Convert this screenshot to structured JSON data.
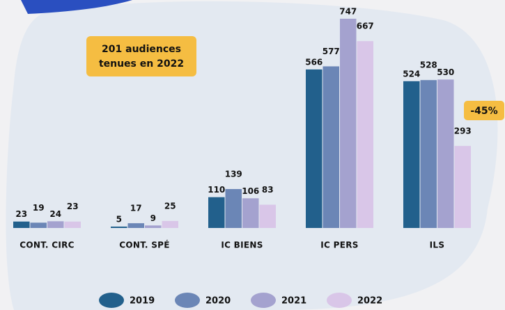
{
  "chart_data": {
    "type": "bar",
    "categories": [
      "CONT. CIRC",
      "CONT. SPÉ",
      "IC BIENS",
      "IC PERS",
      "ILS"
    ],
    "series": [
      {
        "name": "2019",
        "color": "#22608c",
        "values": [
          23,
          5,
          110,
          566,
          524
        ]
      },
      {
        "name": "2020",
        "color": "#6b86b6",
        "values": [
          19,
          17,
          139,
          577,
          528
        ]
      },
      {
        "name": "2021",
        "color": "#a4a2cf",
        "values": [
          24,
          9,
          106,
          747,
          530
        ]
      },
      {
        "name": "2022",
        "color": "#d9c6e8",
        "values": [
          23,
          25,
          83,
          667,
          293
        ]
      }
    ],
    "annotations": [
      "201 audiences",
      "tenues en 2022",
      "-45%"
    ]
  }
}
